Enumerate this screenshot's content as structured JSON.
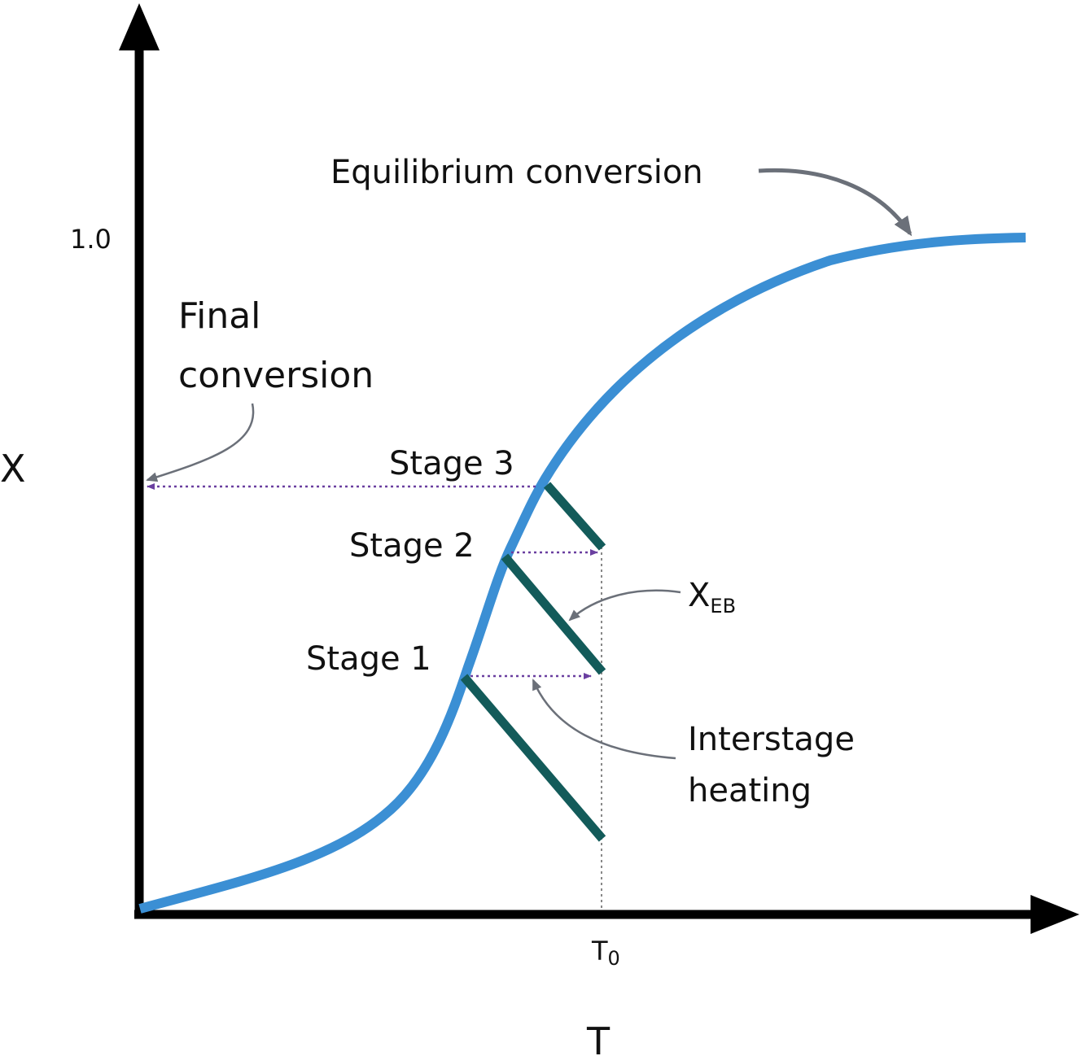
{
  "labels": {
    "y_axis": "X",
    "x_axis": "T",
    "y_tick": "1.0",
    "x_tick_main": "T",
    "x_tick_sub": "0",
    "equilibrium": "Equilibrium conversion",
    "final_line1": "Final",
    "final_line2": "conversion",
    "stage1": "Stage 1",
    "stage2": "Stage 2",
    "stage3": "Stage 3",
    "xeb_main": "X",
    "xeb_sub": "EB",
    "interstage_line1": "Interstage",
    "interstage_line2": "heating"
  },
  "colors": {
    "axis": "#000000",
    "equilibrium_curve": "#3b8fd4",
    "stage_lines": "#135b5a",
    "heating_arrows": "#6a3fa0",
    "callout_arrows": "#6b7079",
    "guide_line": "#888888"
  }
}
